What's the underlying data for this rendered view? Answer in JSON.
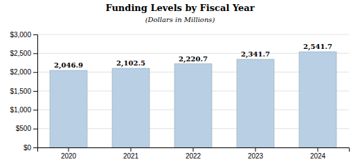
{
  "chart_data": {
    "type": "bar",
    "title": "Funding Levels by Fiscal Year",
    "subtitle": "(Dollars in Millions)",
    "categories": [
      "2020",
      "2021",
      "2022",
      "2023",
      "2024"
    ],
    "values": [
      2046.9,
      2102.5,
      2220.7,
      2341.7,
      2541.7
    ],
    "value_labels": [
      "2,046.9",
      "2,102.5",
      "2,220.7",
      "2,341.7",
      "2,541.7"
    ],
    "data_labels": true,
    "color": "#b8cfe4",
    "ylim": [
      0,
      3000
    ],
    "yticks": [
      {
        "value": 0,
        "label": "$0"
      },
      {
        "value": 500,
        "label": "$500"
      },
      {
        "value": 1000,
        "label": "$1,000"
      },
      {
        "value": 1500,
        "label": "$1,500"
      },
      {
        "value": 2000,
        "label": "$2,000"
      },
      {
        "value": 2500,
        "label": "$2,500"
      },
      {
        "value": 3000,
        "label": "$3,000"
      }
    ],
    "grid": true
  }
}
